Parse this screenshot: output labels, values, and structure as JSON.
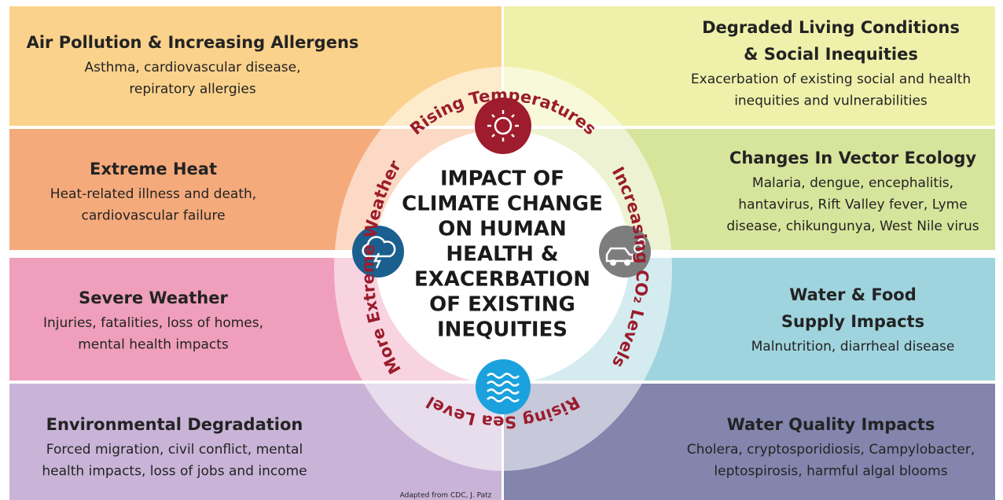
{
  "panels": [
    {
      "title": [
        "Air Pollution & Increasing Allergens"
      ],
      "description": [
        "Asthma, cardiovascular disease,",
        "repiratory allergies"
      ]
    },
    {
      "title": [
        "Extreme Heat"
      ],
      "description": [
        "Heat-related illness and death,",
        "cardiovascular failure"
      ]
    },
    {
      "title": [
        "Severe Weather"
      ],
      "description": [
        "Injuries, fatalities, loss of homes,",
        "mental health impacts"
      ]
    },
    {
      "title": [
        "Environmental Degradation"
      ],
      "description": [
        "Forced migration, civil conflict, mental",
        "health impacts, loss of jobs and income"
      ]
    },
    {
      "title": [
        "Degraded Living Conditions",
        "& Social Inequities"
      ],
      "description": [
        "Exacerbation of existing social and health",
        "inequities and vulnerabilities"
      ]
    },
    {
      "title": [
        "Changes In Vector Ecology"
      ],
      "description": [
        "Malaria, dengue, encephalitis,",
        "hantavirus, Rift Valley fever, Lyme",
        "disease, chikungunya, West Nile virus"
      ]
    },
    {
      "title": [
        "Water & Food",
        "Supply Impacts"
      ],
      "description": [
        "Malnutrition, diarrheal disease"
      ]
    },
    {
      "title": [
        "Water Quality Impacts"
      ],
      "description": [
        "Cholera, cryptosporidiosis, Campylobacter,",
        "leptospirosis, harmful algal blooms"
      ]
    }
  ],
  "center": {
    "title": [
      "IMPACT OF",
      "CLIMATE CHANGE",
      "ON HUMAN",
      "HEALTH &",
      "EXACERBATION",
      "OF EXISTING",
      "INEQUITIES"
    ],
    "drivers": [
      "Rising Temperatures",
      "More Extreme Weather",
      "Increasing CO₂ Levels",
      "Rising Sea Level"
    ]
  },
  "credit": "Adapted from CDC, J. Patz"
}
